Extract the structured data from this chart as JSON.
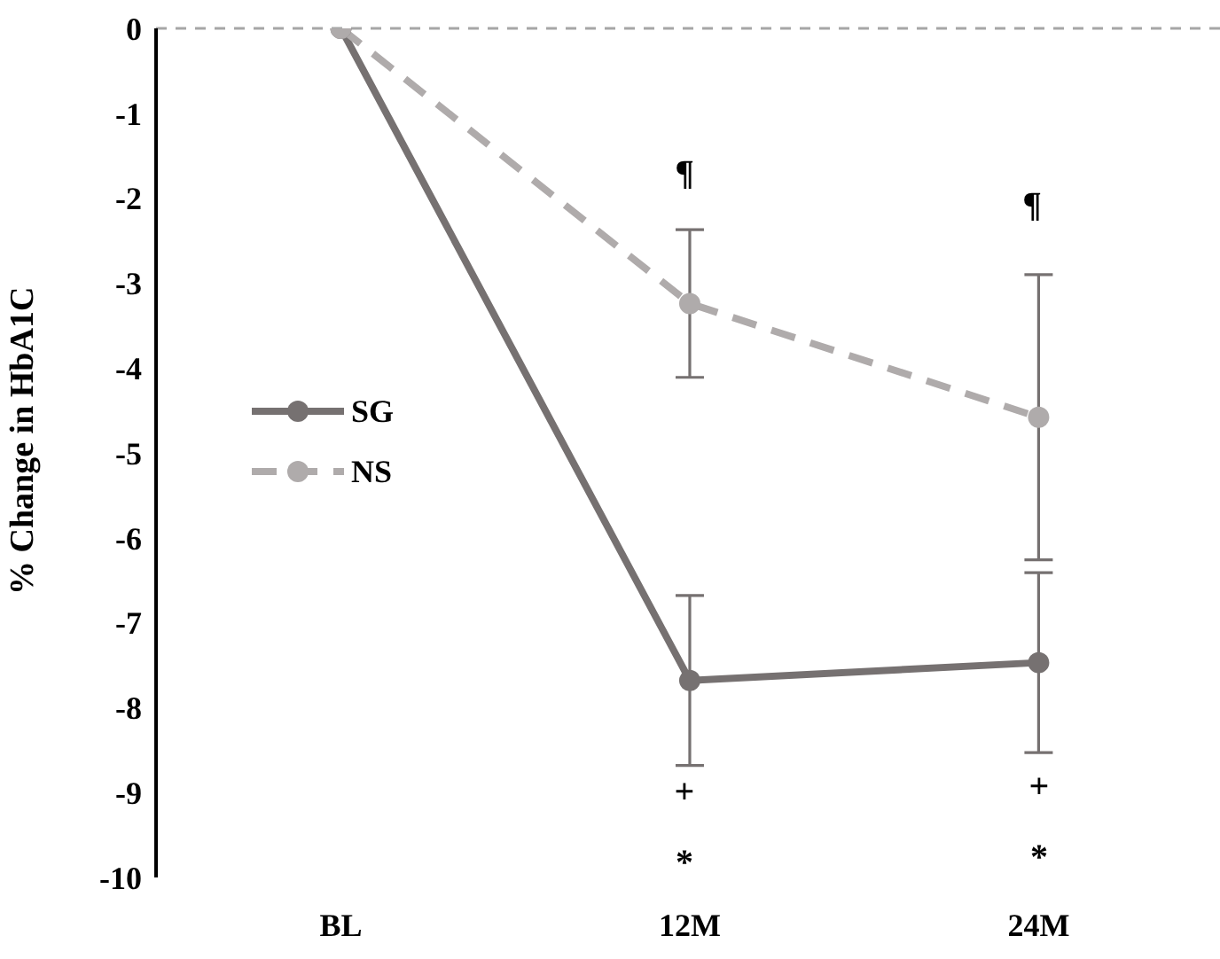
{
  "chart_data": {
    "type": "line",
    "ylabel": "% Change in HbA1C",
    "categories": [
      "BL",
      "12M",
      "24M"
    ],
    "series": [
      {
        "name": "SG",
        "color": "#767171",
        "line_style": "solid",
        "values": [
          0,
          -7.68,
          -7.47
        ],
        "errors": [
          null,
          1.0,
          1.06
        ]
      },
      {
        "name": "NS",
        "color": "#afabab",
        "line_style": "dashed",
        "values": [
          0,
          -3.24,
          -4.58
        ],
        "errors": [
          null,
          0.87,
          1.68
        ]
      }
    ],
    "ylim": [
      -10,
      0
    ],
    "yticks": [
      -10,
      -9,
      -8,
      -7,
      -6,
      -5,
      -4,
      -3,
      -2,
      -1,
      0
    ],
    "marker": "circle",
    "legend": "left",
    "ref_lines": [
      {
        "axis": "y",
        "value": 0,
        "color": "#a6a6a6",
        "line_style": "dashed"
      }
    ],
    "annotations": [
      "¶",
      "¶",
      "+",
      "+",
      "*",
      "*"
    ]
  }
}
